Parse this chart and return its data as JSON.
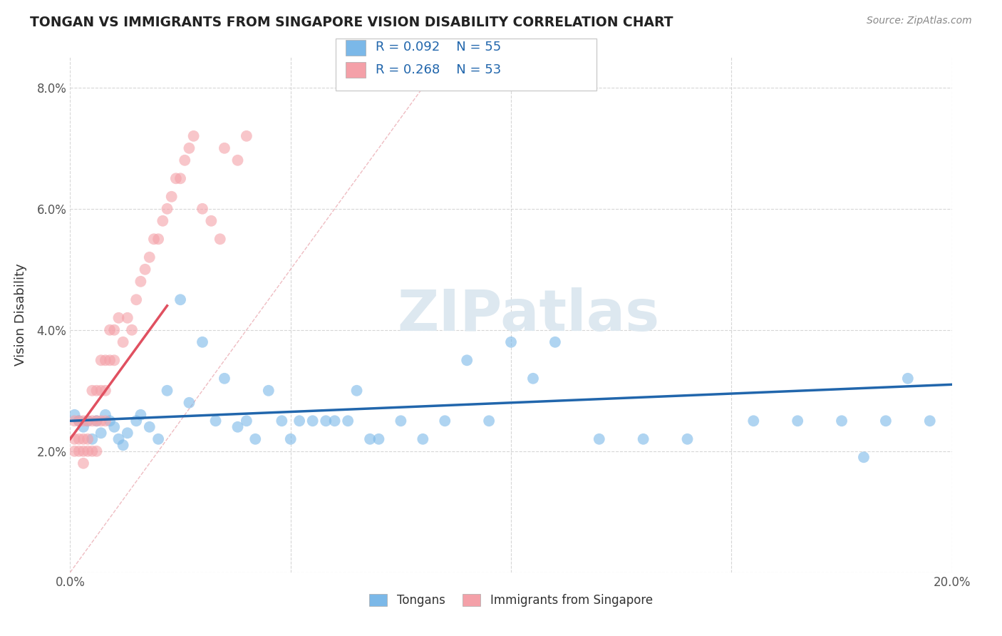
{
  "title": "TONGAN VS IMMIGRANTS FROM SINGAPORE VISION DISABILITY CORRELATION CHART",
  "source": "Source: ZipAtlas.com",
  "ylabel": "Vision Disability",
  "xlim": [
    0.0,
    0.2
  ],
  "ylim": [
    0.0,
    0.085
  ],
  "xticks": [
    0.0,
    0.05,
    0.1,
    0.15,
    0.2
  ],
  "yticks": [
    0.0,
    0.02,
    0.04,
    0.06,
    0.08
  ],
  "xticklabels": [
    "0.0%",
    "",
    "",
    "",
    "20.0%"
  ],
  "yticklabels": [
    "",
    "2.0%",
    "4.0%",
    "6.0%",
    "8.0%"
  ],
  "legend_labels": [
    "Tongans",
    "Immigrants from Singapore"
  ],
  "blue_color": "#7bb8e8",
  "pink_color": "#f4a0a8",
  "blue_line_color": "#2166ac",
  "pink_line_color": "#e05060",
  "diag_color": "#e8a0a8",
  "watermark_color": "#dde8f0",
  "blue_points_x": [
    0.001,
    0.002,
    0.003,
    0.004,
    0.005,
    0.006,
    0.007,
    0.008,
    0.009,
    0.01,
    0.011,
    0.012,
    0.013,
    0.015,
    0.016,
    0.018,
    0.02,
    0.022,
    0.025,
    0.027,
    0.03,
    0.033,
    0.035,
    0.038,
    0.04,
    0.042,
    0.045,
    0.048,
    0.05,
    0.052,
    0.055,
    0.058,
    0.06,
    0.063,
    0.065,
    0.068,
    0.07,
    0.075,
    0.08,
    0.085,
    0.09,
    0.095,
    0.1,
    0.105,
    0.11,
    0.12,
    0.13,
    0.14,
    0.155,
    0.165,
    0.175,
    0.18,
    0.185,
    0.19,
    0.195
  ],
  "blue_points_y": [
    0.026,
    0.025,
    0.024,
    0.025,
    0.022,
    0.025,
    0.023,
    0.026,
    0.025,
    0.024,
    0.022,
    0.021,
    0.023,
    0.025,
    0.026,
    0.024,
    0.022,
    0.03,
    0.045,
    0.028,
    0.038,
    0.025,
    0.032,
    0.024,
    0.025,
    0.022,
    0.03,
    0.025,
    0.022,
    0.025,
    0.025,
    0.025,
    0.025,
    0.025,
    0.03,
    0.022,
    0.022,
    0.025,
    0.022,
    0.025,
    0.035,
    0.025,
    0.038,
    0.032,
    0.038,
    0.022,
    0.022,
    0.022,
    0.025,
    0.025,
    0.025,
    0.019,
    0.025,
    0.032,
    0.025
  ],
  "pink_points_x": [
    0.001,
    0.001,
    0.001,
    0.002,
    0.002,
    0.002,
    0.003,
    0.003,
    0.003,
    0.003,
    0.004,
    0.004,
    0.004,
    0.005,
    0.005,
    0.005,
    0.006,
    0.006,
    0.006,
    0.007,
    0.007,
    0.007,
    0.008,
    0.008,
    0.008,
    0.009,
    0.009,
    0.01,
    0.01,
    0.011,
    0.012,
    0.013,
    0.014,
    0.015,
    0.016,
    0.017,
    0.018,
    0.019,
    0.02,
    0.021,
    0.022,
    0.023,
    0.024,
    0.025,
    0.026,
    0.027,
    0.028,
    0.03,
    0.032,
    0.034,
    0.035,
    0.038,
    0.04
  ],
  "pink_points_y": [
    0.025,
    0.022,
    0.02,
    0.025,
    0.022,
    0.02,
    0.025,
    0.022,
    0.02,
    0.018,
    0.025,
    0.022,
    0.02,
    0.03,
    0.025,
    0.02,
    0.03,
    0.025,
    0.02,
    0.035,
    0.03,
    0.025,
    0.035,
    0.03,
    0.025,
    0.04,
    0.035,
    0.04,
    0.035,
    0.042,
    0.038,
    0.042,
    0.04,
    0.045,
    0.048,
    0.05,
    0.052,
    0.055,
    0.055,
    0.058,
    0.06,
    0.062,
    0.065,
    0.065,
    0.068,
    0.07,
    0.072,
    0.06,
    0.058,
    0.055,
    0.07,
    0.068,
    0.072
  ]
}
